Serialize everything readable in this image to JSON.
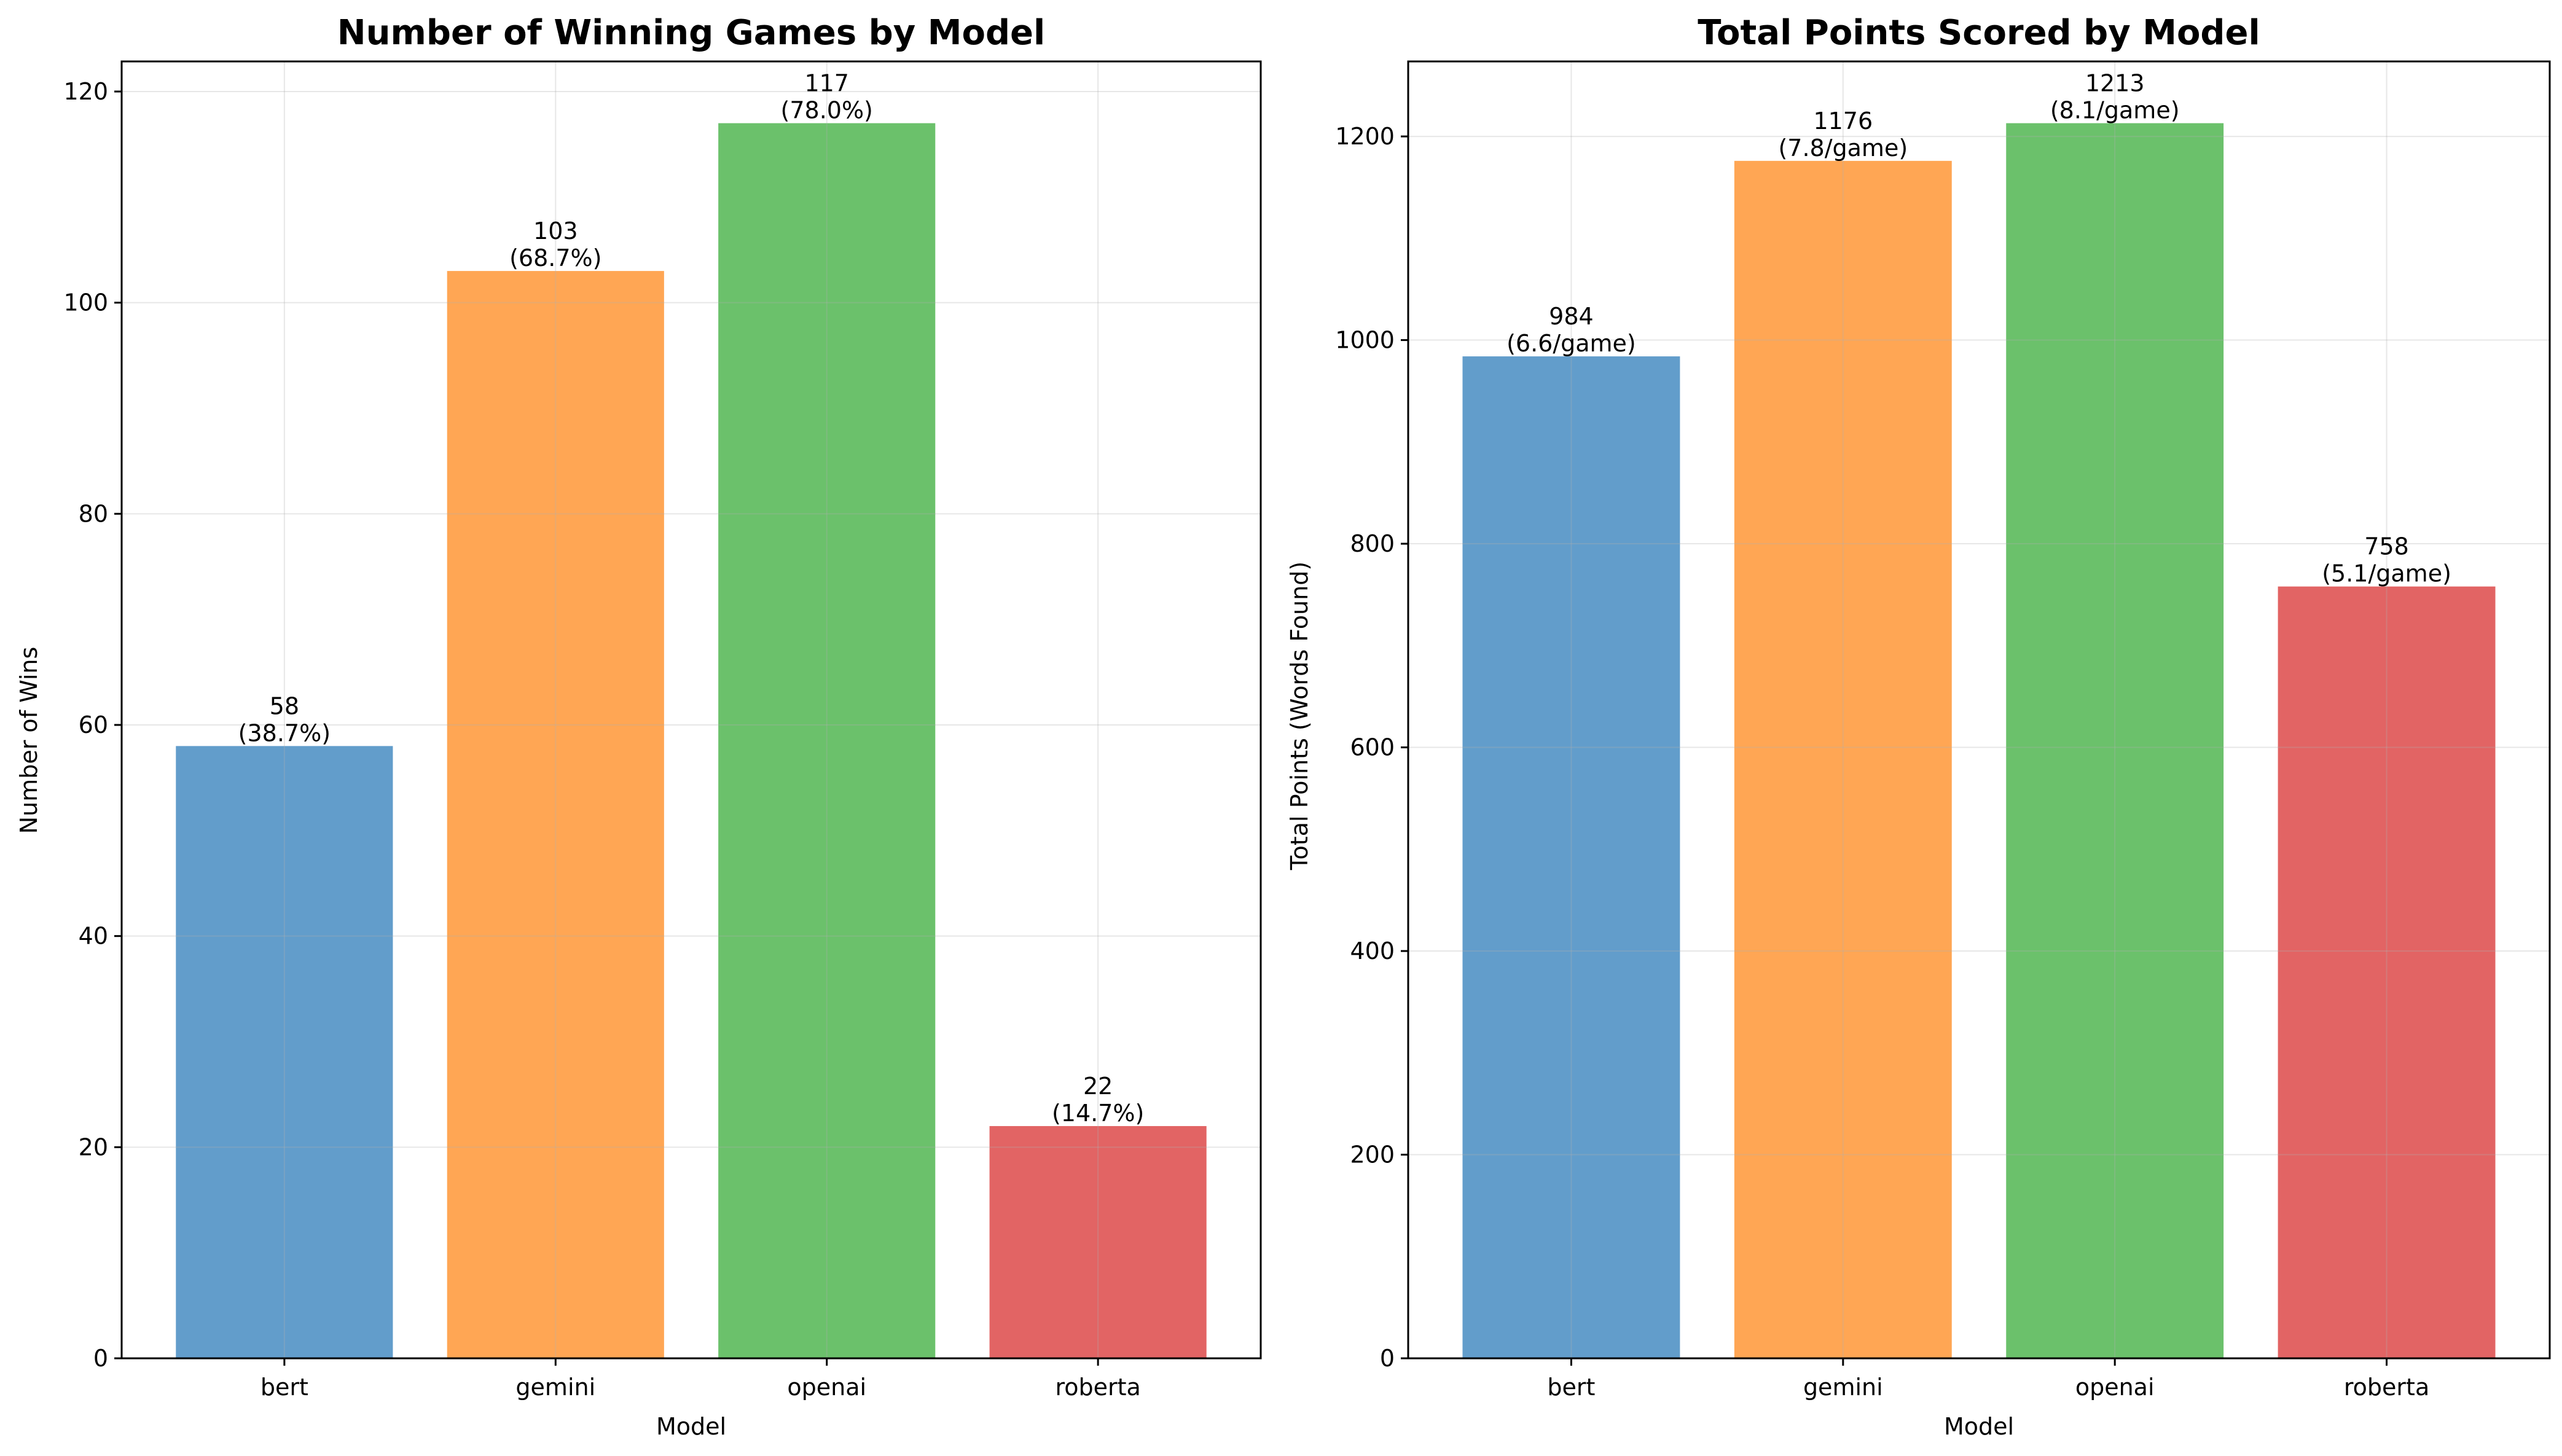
{
  "chart_data": [
    {
      "type": "bar",
      "title": "Number of Winning Games by Model",
      "xlabel": "Model",
      "ylabel": "Number of Wins",
      "categories": [
        "bert",
        "gemini",
        "openai",
        "roberta"
      ],
      "values": [
        58,
        103,
        117,
        22
      ],
      "bar_labels": [
        "58\n(38.7%)",
        "103\n(68.7%)",
        "117\n(78.0%)",
        "22\n(14.7%)"
      ],
      "colors": [
        "#4c8fc4",
        "#ff9a3c",
        "#56b856",
        "#de4f4f"
      ],
      "ylim": [
        0,
        122.85
      ],
      "yticks": [
        0,
        20,
        40,
        60,
        80,
        100,
        120
      ],
      "grid": true
    },
    {
      "type": "bar",
      "title": "Total Points Scored by Model",
      "xlabel": "Model",
      "ylabel": "Total Points (Words Found)",
      "categories": [
        "bert",
        "gemini",
        "openai",
        "roberta"
      ],
      "values": [
        984,
        1176,
        1213,
        758
      ],
      "bar_labels": [
        "984\n(6.6/game)",
        "1176\n(7.8/game)",
        "1213\n(8.1/game)",
        "758\n(5.1/game)"
      ],
      "colors": [
        "#4c8fc4",
        "#ff9a3c",
        "#56b856",
        "#de4f4f"
      ],
      "ylim": [
        0,
        1273.65
      ],
      "yticks": [
        0,
        200,
        400,
        600,
        800,
        1000,
        1200
      ],
      "grid": true
    }
  ]
}
